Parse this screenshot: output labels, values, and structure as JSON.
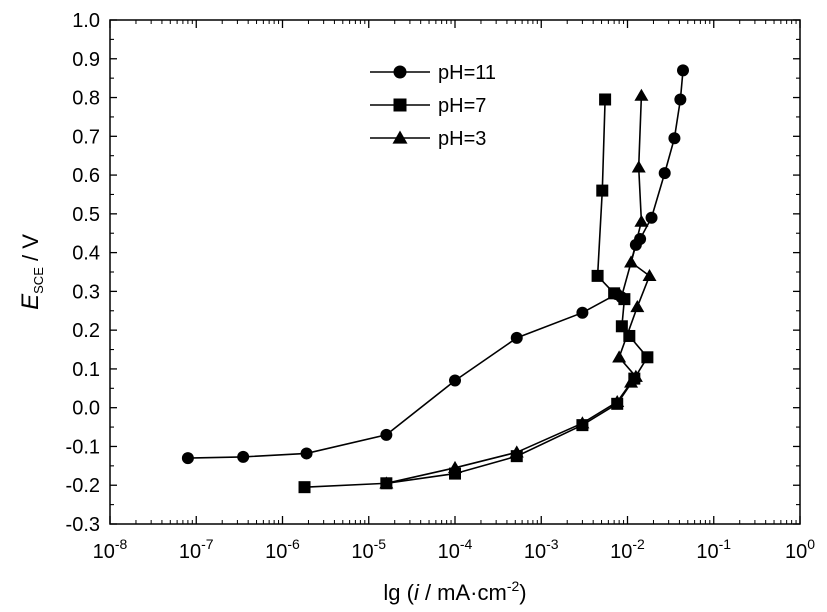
{
  "chart_data": {
    "type": "line",
    "title": "",
    "xscale": "log",
    "xlim": [
      1e-08,
      1
    ],
    "ylim": [
      -0.3,
      1.0
    ],
    "y_ticks": [
      "-0.3",
      "-0.2",
      "-0.1",
      "0.0",
      "0.1",
      "0.2",
      "0.3",
      "0.4",
      "0.5",
      "0.6",
      "0.7",
      "0.8",
      "0.9",
      "1.0"
    ],
    "x_ticks": [
      {
        "base": "10",
        "exp": "-8"
      },
      {
        "base": "10",
        "exp": "-7"
      },
      {
        "base": "10",
        "exp": "-6"
      },
      {
        "base": "10",
        "exp": "-5"
      },
      {
        "base": "10",
        "exp": "-4"
      },
      {
        "base": "10",
        "exp": "-3"
      },
      {
        "base": "10",
        "exp": "-2"
      },
      {
        "base": "10",
        "exp": "-1"
      },
      {
        "base": "10",
        "exp": "0"
      }
    ],
    "xlabel": {
      "prefix": "lg (",
      "var": "i",
      "mid": " / mA·cm",
      "sup": "-2",
      "suffix": ")"
    },
    "ylabel": {
      "var": "E",
      "sub": "SCE",
      "suffix": " / V"
    },
    "legend_position": "top-center",
    "grid": false,
    "series": [
      {
        "name": "pH=11",
        "marker": "circle",
        "color": "#000000",
        "points": [
          [
            8e-08,
            -0.13
          ],
          [
            3.5e-07,
            -0.127
          ],
          [
            1.9e-06,
            -0.118
          ],
          [
            1.6e-05,
            -0.07
          ],
          [
            0.0001,
            0.07
          ],
          [
            0.00052,
            0.18
          ],
          [
            0.003,
            0.245
          ],
          [
            0.0075,
            0.293
          ],
          [
            0.0085,
            0.285
          ],
          [
            0.0125,
            0.42
          ],
          [
            0.014,
            0.435
          ],
          [
            0.019,
            0.49
          ],
          [
            0.027,
            0.605
          ],
          [
            0.035,
            0.695
          ],
          [
            0.041,
            0.795
          ],
          [
            0.044,
            0.87
          ]
        ]
      },
      {
        "name": "pH=7",
        "marker": "square",
        "color": "#000000",
        "points": [
          [
            1.8e-06,
            -0.205
          ],
          [
            1.6e-05,
            -0.195
          ],
          [
            0.0001,
            -0.17
          ],
          [
            0.00052,
            -0.125
          ],
          [
            0.003,
            -0.045
          ],
          [
            0.0076,
            0.01
          ],
          [
            0.012,
            0.075
          ],
          [
            0.017,
            0.13
          ],
          [
            0.0105,
            0.185
          ],
          [
            0.0086,
            0.21
          ],
          [
            0.0092,
            0.28
          ],
          [
            0.007,
            0.295
          ],
          [
            0.0045,
            0.34
          ],
          [
            0.0051,
            0.56
          ],
          [
            0.0055,
            0.795
          ]
        ]
      },
      {
        "name": "pH=3",
        "marker": "triangle",
        "color": "#000000",
        "points": [
          [
            1.6e-05,
            -0.195
          ],
          [
            0.0001,
            -0.155
          ],
          [
            0.00052,
            -0.115
          ],
          [
            0.003,
            -0.04
          ],
          [
            0.0076,
            0.015
          ],
          [
            0.011,
            0.065
          ],
          [
            0.0125,
            0.08
          ],
          [
            0.008,
            0.13
          ],
          [
            0.013,
            0.26
          ],
          [
            0.018,
            0.34
          ],
          [
            0.011,
            0.375
          ],
          [
            0.0145,
            0.48
          ],
          [
            0.0135,
            0.62
          ],
          [
            0.0145,
            0.805
          ]
        ]
      }
    ]
  }
}
